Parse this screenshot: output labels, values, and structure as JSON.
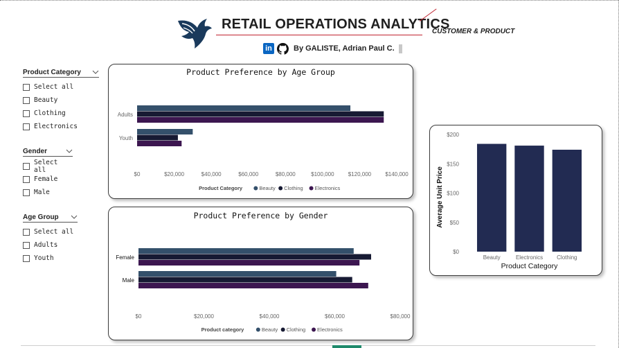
{
  "header": {
    "title": "RETAIL OPERATIONS ANALYTICS",
    "subtitle": "CUSTOMER & PRODUCT",
    "author": "By GALISTE, Adrian Paul C.",
    "linkedin_glyph": "in",
    "logo_icon": "eagle-logo-icon",
    "brand_color": "#1a3a5c",
    "accent_color": "#c0222e"
  },
  "slicers": [
    {
      "title": "Product Category",
      "options": [
        "Select all",
        "Beauty",
        "Clothing",
        "Electronics"
      ]
    },
    {
      "title": "Gender",
      "options": [
        "Select all",
        "Female",
        "Male"
      ]
    },
    {
      "title": "Age Group",
      "options": [
        "Select all",
        "Adults",
        "Youth"
      ]
    }
  ],
  "series_colors": {
    "Beauty": "#34506b",
    "Clothing": "#171a33",
    "Electronics": "#3c1650"
  },
  "chart_data": [
    {
      "type": "bar",
      "orientation": "horizontal",
      "title": "Product Preference by Age Group",
      "categories": [
        "Adults",
        "Youth"
      ],
      "series": [
        {
          "name": "Beauty",
          "values": [
            115000,
            30000
          ]
        },
        {
          "name": "Clothing",
          "values": [
            133000,
            22000
          ]
        },
        {
          "name": "Electronics",
          "values": [
            133000,
            24000
          ]
        }
      ],
      "xlim": [
        0,
        140000
      ],
      "xticks": [
        "$0",
        "$20,000",
        "$40,000",
        "$60,000",
        "$80,000",
        "$100,000",
        "$120,000",
        "$140,000"
      ],
      "legend_title": "Product Category",
      "legend_position": "bottom-center",
      "grid": false
    },
    {
      "type": "bar",
      "orientation": "horizontal",
      "title": "Product Preference by Gender",
      "categories": [
        "Female",
        "Male"
      ],
      "series": [
        {
          "name": "Beauty",
          "values": [
            74000,
            68000
          ]
        },
        {
          "name": "Clothing",
          "values": [
            80000,
            73500
          ]
        },
        {
          "name": "Electronics",
          "values": [
            76000,
            79000
          ]
        }
      ],
      "xlim": [
        0,
        90000
      ],
      "xticks": [
        "$0",
        "$20,000",
        "$40,000",
        "$60,000",
        "$80,000"
      ],
      "legend_title": "Product category",
      "legend_position": "bottom-center",
      "grid": false
    },
    {
      "type": "bar",
      "orientation": "vertical",
      "title": "",
      "categories": [
        "Beauty",
        "Electronics",
        "Clothing"
      ],
      "values": [
        184,
        181,
        174
      ],
      "ylim": [
        0,
        200
      ],
      "yticks": [
        "$0",
        "$50",
        "$100",
        "$150",
        "$200"
      ],
      "xlabel": "Product Category",
      "ylabel": "Average Unit Price",
      "color": "#222b52",
      "grid": false
    }
  ]
}
